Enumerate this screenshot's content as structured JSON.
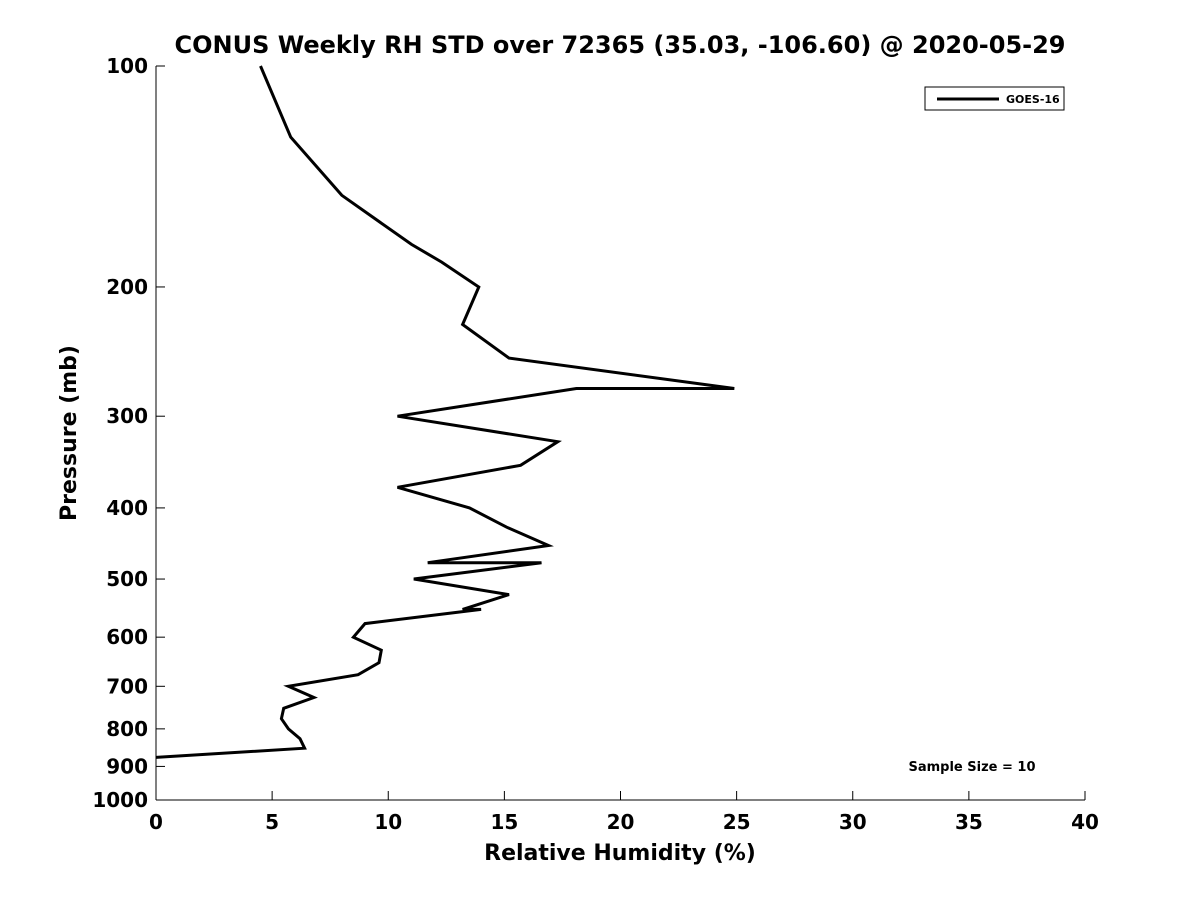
{
  "chart_data": {
    "type": "line",
    "title": "CONUS Weekly RH STD over 72365 (35.03, -106.60) @ 2020-05-29",
    "xlabel": "Relative Humidity (%)",
    "ylabel": "Pressure (mb)",
    "xlim": [
      0,
      40
    ],
    "ylim": [
      100,
      1000
    ],
    "y_scale": "log",
    "y_reversed": true,
    "xticks": [
      0,
      5,
      10,
      15,
      20,
      25,
      30,
      35,
      40
    ],
    "xtick_labels": [
      "0",
      "5",
      "10",
      "15",
      "20",
      "25",
      "30",
      "35",
      "40"
    ],
    "yticks": [
      100,
      200,
      300,
      400,
      500,
      600,
      700,
      800,
      900,
      1000
    ],
    "ytick_labels": [
      "100",
      "200",
      "300",
      "400",
      "500",
      "600",
      "700",
      "800",
      "900",
      "1000"
    ],
    "grid": false,
    "legend_position": "top-right",
    "annotation": "Sample Size = 10",
    "series": [
      {
        "name": "GOES-16",
        "color": "#000000",
        "points": [
          {
            "x": 4.5,
            "y": 100
          },
          {
            "x": 5.8,
            "y": 125
          },
          {
            "x": 8.0,
            "y": 150
          },
          {
            "x": 11.0,
            "y": 175
          },
          {
            "x": 12.3,
            "y": 185
          },
          {
            "x": 13.9,
            "y": 200
          },
          {
            "x": 13.2,
            "y": 225
          },
          {
            "x": 15.2,
            "y": 250
          },
          {
            "x": 24.9,
            "y": 275
          },
          {
            "x": 18.1,
            "y": 275
          },
          {
            "x": 10.4,
            "y": 300
          },
          {
            "x": 17.3,
            "y": 325
          },
          {
            "x": 15.7,
            "y": 350
          },
          {
            "x": 10.4,
            "y": 375
          },
          {
            "x": 13.5,
            "y": 400
          },
          {
            "x": 15.1,
            "y": 425
          },
          {
            "x": 16.9,
            "y": 450
          },
          {
            "x": 11.7,
            "y": 475
          },
          {
            "x": 16.6,
            "y": 475
          },
          {
            "x": 11.1,
            "y": 500
          },
          {
            "x": 15.2,
            "y": 525
          },
          {
            "x": 13.2,
            "y": 550
          },
          {
            "x": 14.0,
            "y": 550
          },
          {
            "x": 9.0,
            "y": 575
          },
          {
            "x": 8.5,
            "y": 600
          },
          {
            "x": 9.7,
            "y": 625
          },
          {
            "x": 9.6,
            "y": 650
          },
          {
            "x": 8.7,
            "y": 675
          },
          {
            "x": 5.7,
            "y": 700
          },
          {
            "x": 6.8,
            "y": 725
          },
          {
            "x": 5.5,
            "y": 750
          },
          {
            "x": 5.4,
            "y": 775
          },
          {
            "x": 5.7,
            "y": 800
          },
          {
            "x": 6.2,
            "y": 825
          },
          {
            "x": 6.4,
            "y": 850
          },
          {
            "x": 6.4,
            "y": 850
          },
          {
            "x": 0.0,
            "y": 875
          }
        ]
      }
    ]
  }
}
